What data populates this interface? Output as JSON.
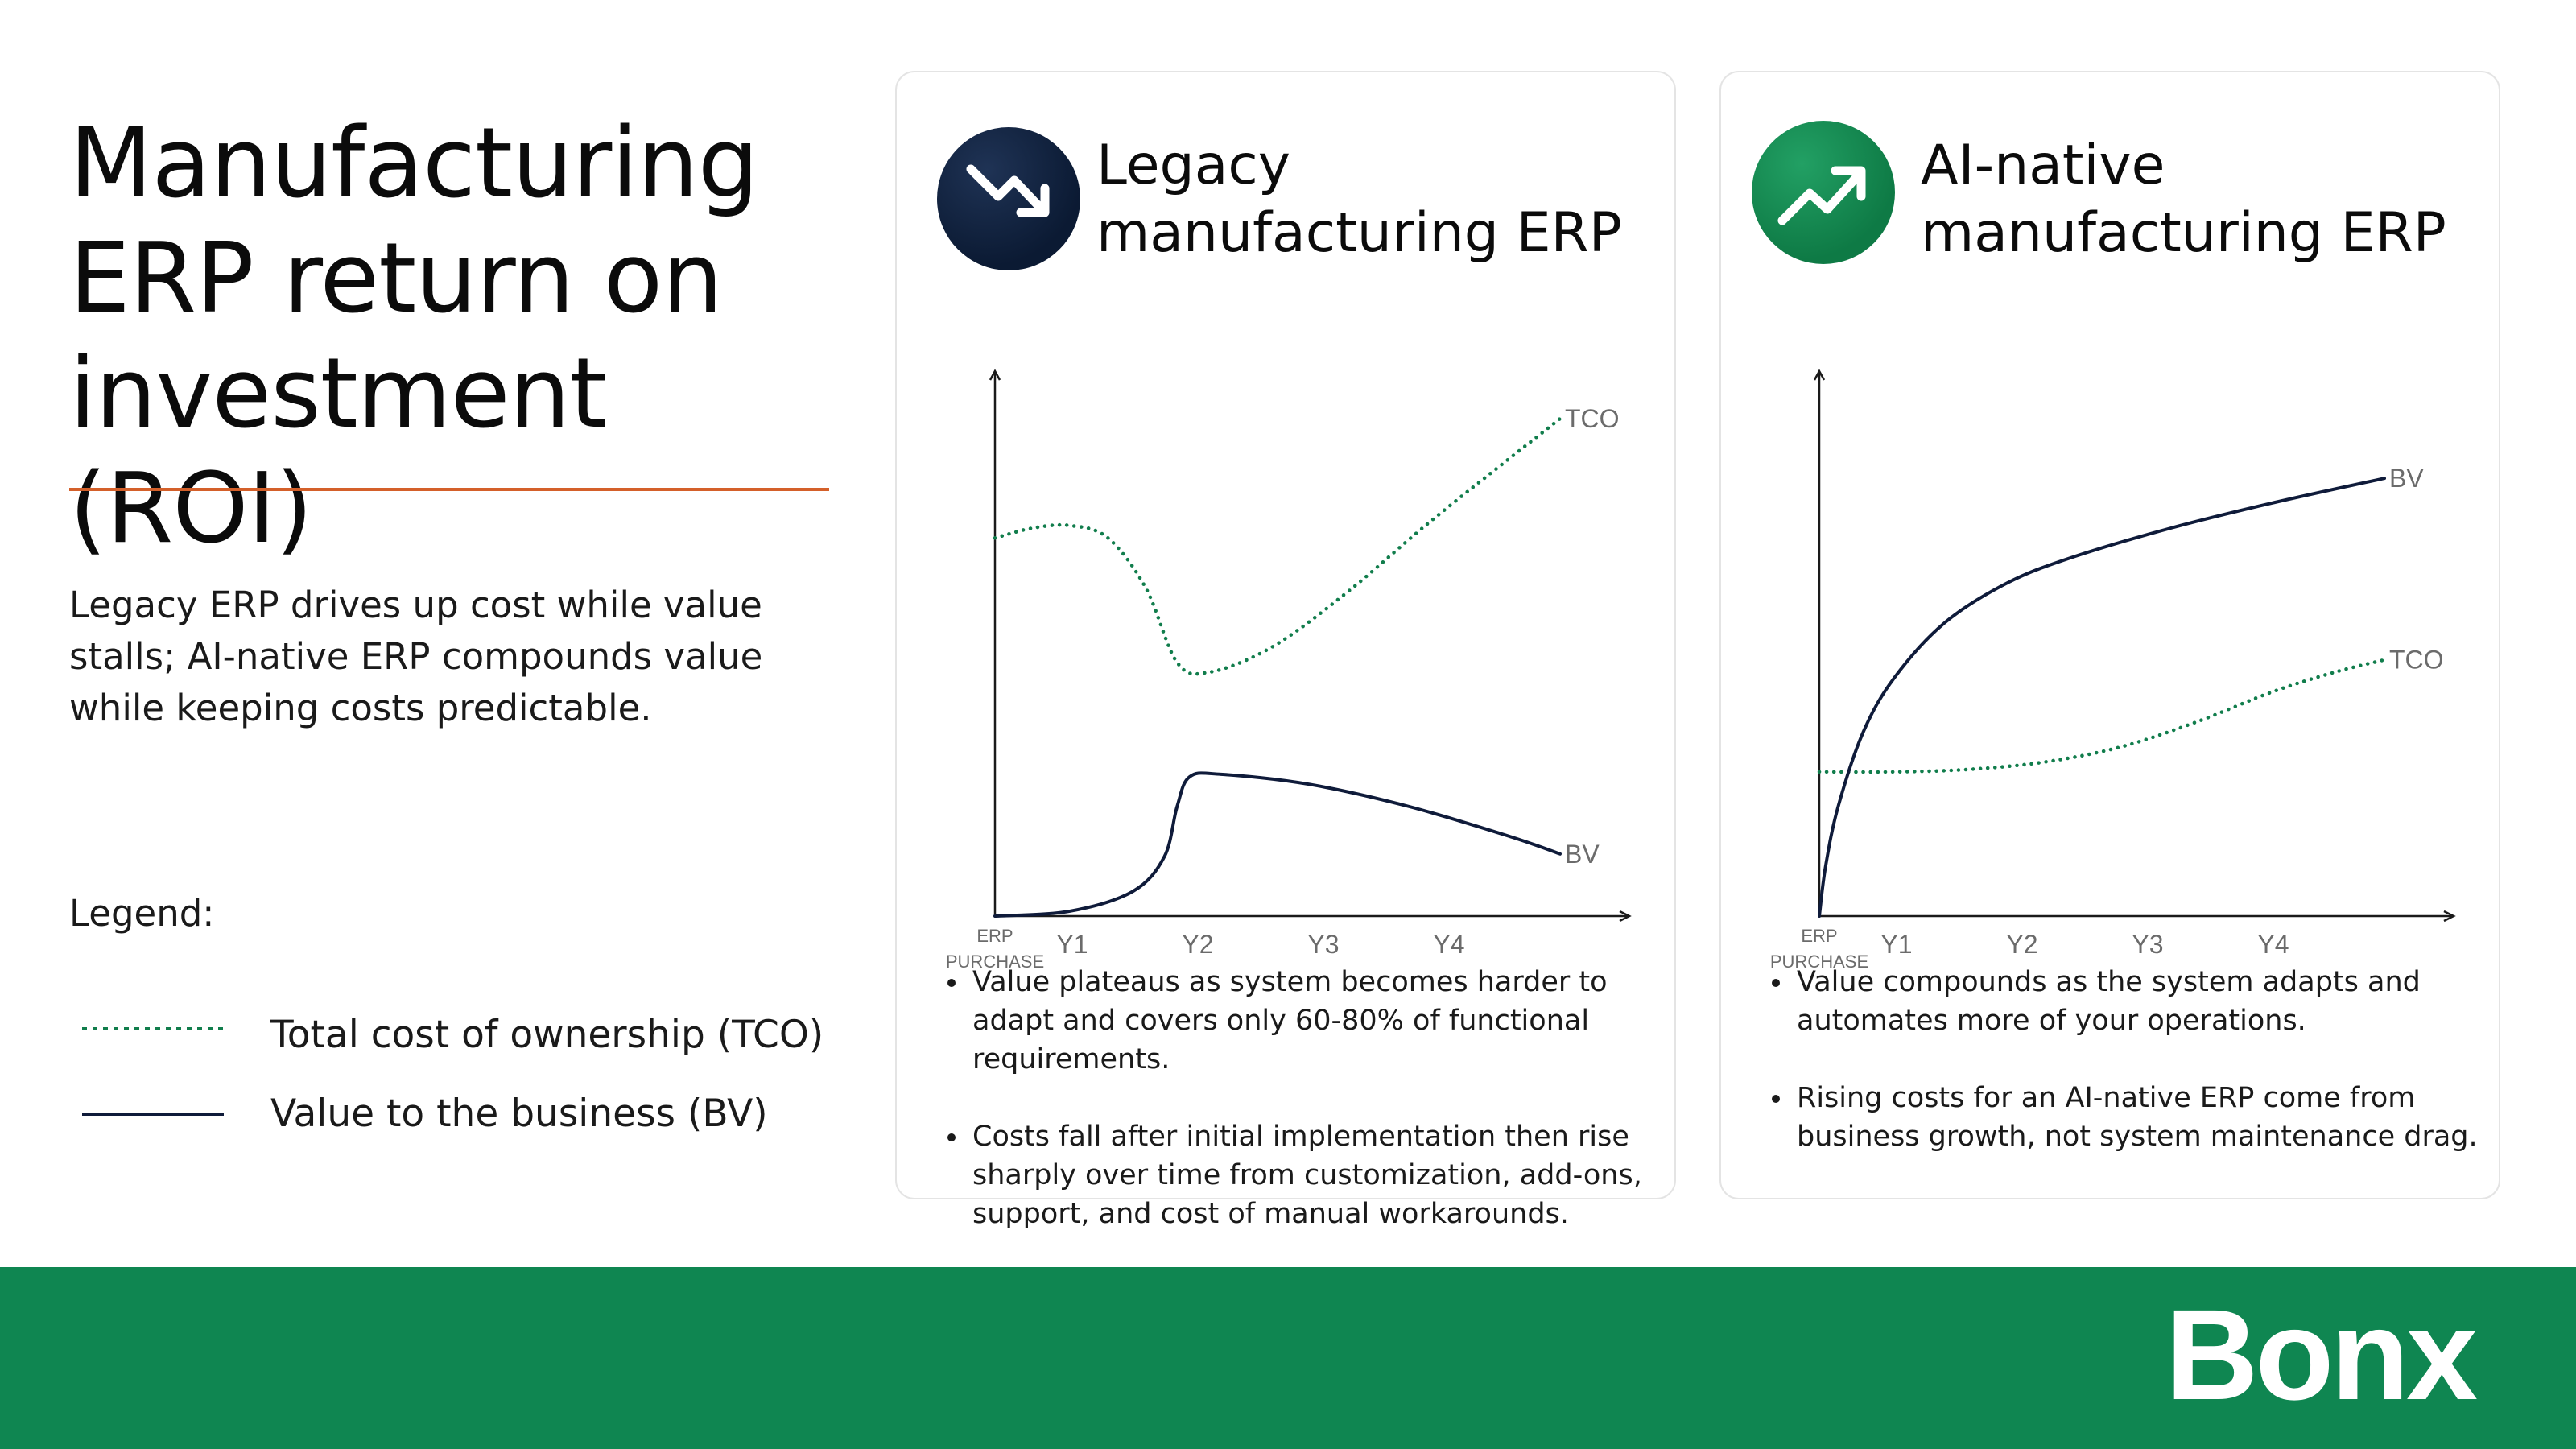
{
  "page": {
    "title": "Manufacturing ERP return on investment (ROI)",
    "subtitle": "Legacy ERP drives up cost while value stalls; AI-native ERP compounds value while keeping costs predictable.",
    "legend": {
      "title": "Legend:",
      "items": [
        {
          "label": "Total cost of ownership (TCO)",
          "style": "dotted",
          "color": "#117d4c"
        },
        {
          "label": "Value to the business (BV)",
          "style": "solid",
          "color": "#0f1b3a"
        }
      ]
    },
    "logo_text": "Bonx"
  },
  "cards": [
    {
      "title_line1": "Legacy",
      "title_line2": "manufacturing ERP",
      "icon": "trending-down-icon",
      "bullets": [
        "Value plateaus as system becomes harder to adapt and covers only 60-80% of functional requirements.",
        "Costs fall after initial implementation then rise sharply over time from customization, add-ons, support, and cost of manual workarounds."
      ]
    },
    {
      "title_line1": "AI-native",
      "title_line2": "manufacturing ERP",
      "icon": "trending-up-icon",
      "bullets": [
        "Value compounds as the system adapts and automates more of your operations.",
        "Rising costs for an AI-native ERP come from business growth, not system maintenance drag."
      ]
    }
  ],
  "chart_data": [
    {
      "type": "line",
      "title": "Legacy manufacturing ERP",
      "x_ticks": [
        {
          "x": 0,
          "label": [
            "ERP",
            "PURCHASE"
          ]
        },
        {
          "x": 1,
          "label": [
            "Y1"
          ]
        },
        {
          "x": 2,
          "label": [
            "Y2"
          ]
        },
        {
          "x": 3,
          "label": [
            "Y3"
          ]
        },
        {
          "x": 4,
          "label": [
            "Y4"
          ]
        }
      ],
      "xlim": [
        0,
        4.5
      ],
      "ylim": [
        0,
        100
      ],
      "y_ticks": false,
      "series": [
        {
          "name": "TCO",
          "style": "dotted",
          "color": "#117d4c",
          "points": [
            [
              0,
              76
            ],
            [
              0.3,
              78
            ],
            [
              0.6,
              78.5
            ],
            [
              0.9,
              76
            ],
            [
              1.2,
              66
            ],
            [
              1.45,
              51
            ],
            [
              1.7,
              49
            ],
            [
              2.2,
              54
            ],
            [
              2.8,
              65
            ],
            [
              3.5,
              80
            ],
            [
              4.5,
              100
            ]
          ]
        },
        {
          "name": "BV",
          "style": "solid",
          "color": "#0f1b3a",
          "points": [
            [
              0,
              0
            ],
            [
              0.6,
              1
            ],
            [
              1.1,
              5
            ],
            [
              1.35,
              12
            ],
            [
              1.45,
              22
            ],
            [
              1.55,
              28
            ],
            [
              1.8,
              28.5
            ],
            [
              2.5,
              26.5
            ],
            [
              3.3,
              22
            ],
            [
              4.1,
              16
            ],
            [
              4.5,
              12.5
            ]
          ]
        }
      ]
    },
    {
      "type": "line",
      "title": "AI-native manufacturing ERP",
      "x_ticks": [
        {
          "x": 0,
          "label": [
            "ERP",
            "PURCHASE"
          ]
        },
        {
          "x": 1,
          "label": [
            "Y1"
          ]
        },
        {
          "x": 2,
          "label": [
            "Y2"
          ]
        },
        {
          "x": 3,
          "label": [
            "Y3"
          ]
        },
        {
          "x": 4,
          "label": [
            "Y4"
          ]
        }
      ],
      "xlim": [
        0,
        4.5
      ],
      "ylim": [
        0,
        100
      ],
      "y_ticks": false,
      "series": [
        {
          "name": "TCO",
          "style": "dotted",
          "color": "#117d4c",
          "points": [
            [
              0,
              29
            ],
            [
              0.6,
              29
            ],
            [
              1.2,
              29.5
            ],
            [
              1.8,
              31
            ],
            [
              2.4,
              34
            ],
            [
              3.0,
              39
            ],
            [
              3.6,
              45
            ],
            [
              4.1,
              49
            ],
            [
              4.5,
              51.5
            ]
          ]
        },
        {
          "name": "BV",
          "style": "solid",
          "color": "#0f1b3a",
          "points": [
            [
              0,
              0
            ],
            [
              0.05,
              10
            ],
            [
              0.15,
              22
            ],
            [
              0.35,
              37
            ],
            [
              0.6,
              48
            ],
            [
              1.0,
              59
            ],
            [
              1.5,
              67
            ],
            [
              2.0,
              72
            ],
            [
              2.8,
              78
            ],
            [
              3.6,
              83
            ],
            [
              4.5,
              88
            ]
          ]
        }
      ]
    }
  ]
}
